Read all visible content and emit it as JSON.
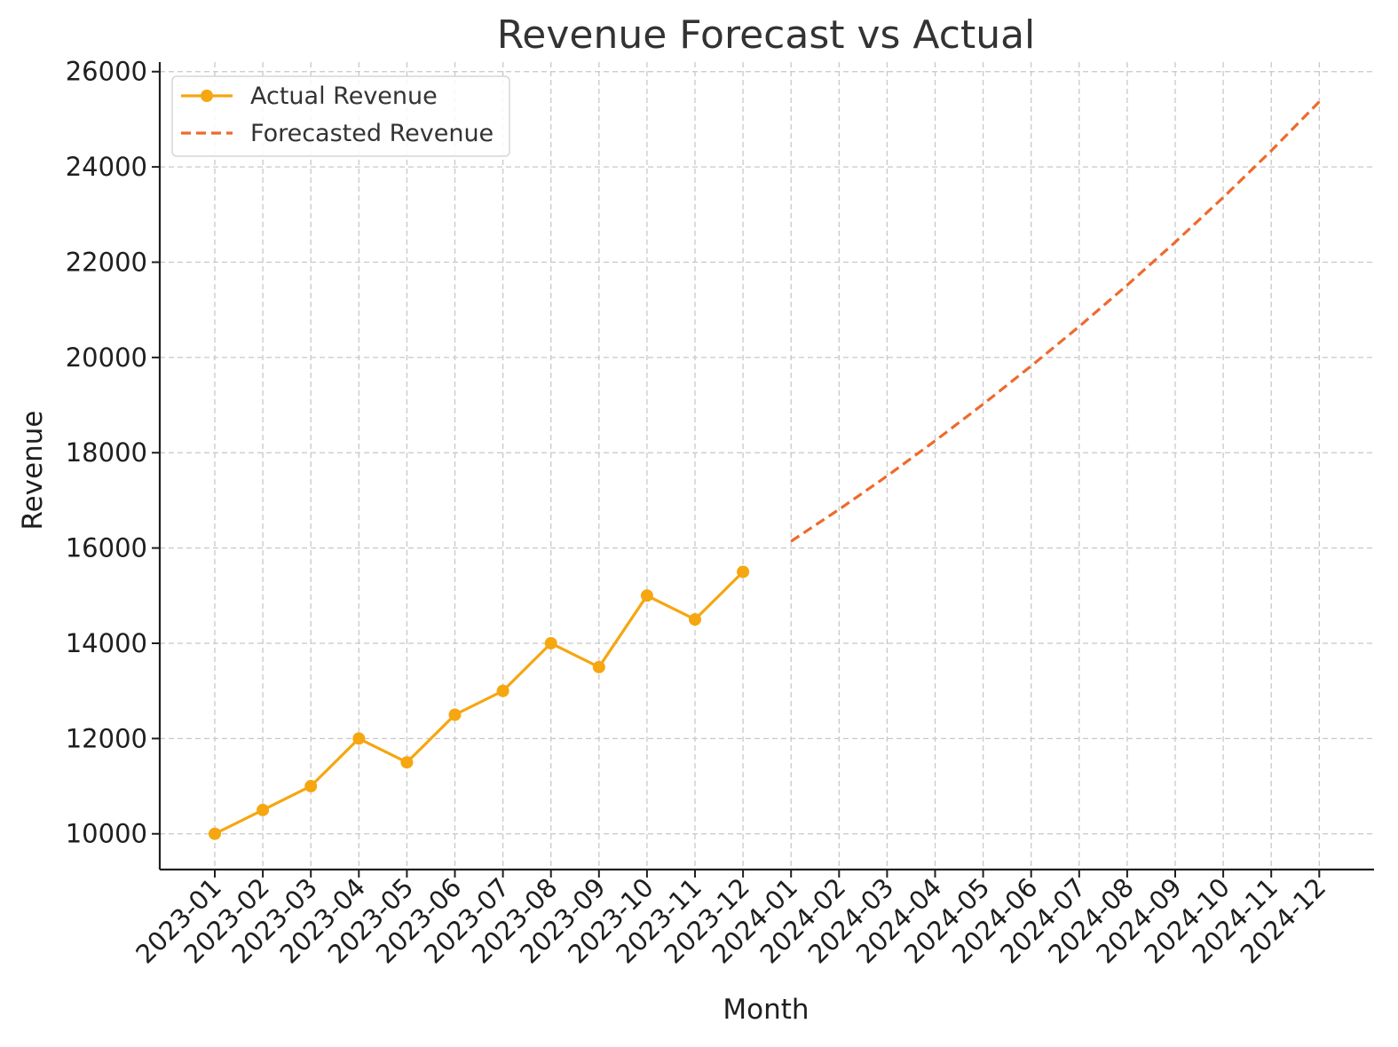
{
  "chart_data": {
    "type": "line",
    "title": "Revenue Forecast vs Actual",
    "xlabel": "Month",
    "ylabel": "Revenue",
    "categories": [
      "2023-01",
      "2023-02",
      "2023-03",
      "2023-04",
      "2023-05",
      "2023-06",
      "2023-07",
      "2023-08",
      "2023-09",
      "2023-10",
      "2023-11",
      "2023-12",
      "2024-01",
      "2024-02",
      "2024-03",
      "2024-04",
      "2024-05",
      "2024-06",
      "2024-07",
      "2024-08",
      "2024-09",
      "2024-10",
      "2024-11",
      "2024-12"
    ],
    "y_ticks": [
      10000,
      12000,
      14000,
      16000,
      18000,
      20000,
      22000,
      24000,
      26000
    ],
    "ylim": [
      9250,
      26200
    ],
    "grid": true,
    "legend_position": "top-left",
    "series": [
      {
        "name": "Actual Revenue",
        "color": "#F6A610",
        "style": "solid-with-markers",
        "x": [
          "2023-01",
          "2023-02",
          "2023-03",
          "2023-04",
          "2023-05",
          "2023-06",
          "2023-07",
          "2023-08",
          "2023-09",
          "2023-10",
          "2023-11",
          "2023-12"
        ],
        "values": [
          10000,
          10500,
          11000,
          12000,
          11500,
          12500,
          13000,
          14000,
          13500,
          15000,
          14500,
          15500
        ]
      },
      {
        "name": "Forecasted Revenue",
        "color": "#EE6A2C",
        "style": "dashed",
        "x": [
          "2024-01",
          "2024-02",
          "2024-03",
          "2024-04",
          "2024-05",
          "2024-06",
          "2024-07",
          "2024-08",
          "2024-09",
          "2024-10",
          "2024-11",
          "2024-12"
        ],
        "values": [
          16140,
          16810,
          17510,
          18250,
          19020,
          19820,
          20650,
          21520,
          22420,
          23360,
          24340,
          25370
        ]
      }
    ]
  }
}
